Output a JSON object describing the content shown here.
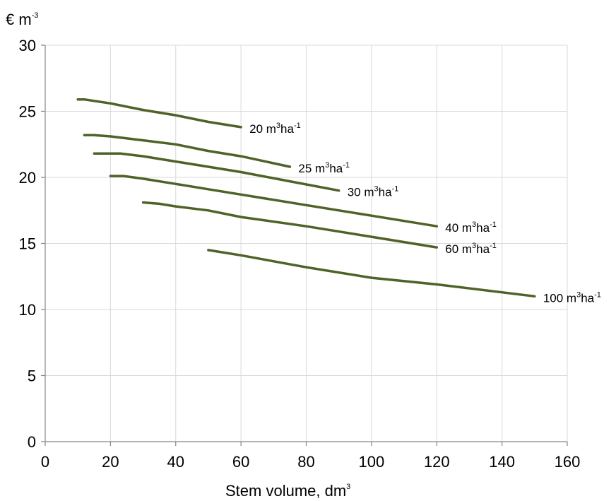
{
  "chart_data": {
    "type": "line",
    "ylabel": "€ m",
    "ylabel_sup": "-3",
    "xlabel": "Stem volume, dm",
    "xlabel_sup": "3",
    "xlim": [
      0,
      160
    ],
    "ylim": [
      0,
      30
    ],
    "xticks": [
      0,
      20,
      40,
      60,
      80,
      100,
      120,
      140,
      160
    ],
    "yticks": [
      0,
      5,
      10,
      15,
      20,
      25,
      30
    ],
    "grid": true,
    "line_color": "#4f6228",
    "series": [
      {
        "name": "20 m³ha⁻¹",
        "label_main": "20 m",
        "label_sup1": "3",
        "label_mid": "ha",
        "label_sup2": "-1",
        "x": [
          10,
          12,
          20,
          30,
          40,
          50,
          60
        ],
        "y": [
          25.9,
          25.9,
          25.6,
          25.1,
          24.7,
          24.2,
          23.8
        ]
      },
      {
        "name": "25 m³ha⁻¹",
        "label_main": "25 m",
        "label_sup1": "3",
        "label_mid": "ha",
        "label_sup2": "-1",
        "x": [
          12,
          15,
          20,
          30,
          40,
          50,
          60,
          75
        ],
        "y": [
          23.2,
          23.2,
          23.1,
          22.8,
          22.5,
          22.0,
          21.6,
          20.8
        ]
      },
      {
        "name": "30 m³ha⁻¹",
        "label_main": "30 m",
        "label_sup1": "3",
        "label_mid": "ha",
        "label_sup2": "-1",
        "x": [
          15,
          18,
          23,
          30,
          40,
          50,
          60,
          75,
          90
        ],
        "y": [
          21.8,
          21.8,
          21.8,
          21.6,
          21.2,
          20.8,
          20.4,
          19.7,
          19.0
        ]
      },
      {
        "name": "40 m³ha⁻¹",
        "label_main": "40 m",
        "label_sup1": "3",
        "label_mid": "ha",
        "label_sup2": "-1",
        "x": [
          20,
          24,
          30,
          40,
          50,
          60,
          80,
          100,
          120
        ],
        "y": [
          20.1,
          20.1,
          19.9,
          19.5,
          19.1,
          18.7,
          17.9,
          17.1,
          16.3
        ]
      },
      {
        "name": "60 m³ha⁻¹",
        "label_main": "60 m",
        "label_sup1": "3",
        "label_mid": "ha",
        "label_sup2": "-1",
        "x": [
          30,
          35,
          40,
          50,
          60,
          80,
          100,
          120
        ],
        "y": [
          18.1,
          18.0,
          17.8,
          17.5,
          17.0,
          16.3,
          15.5,
          14.7
        ]
      },
      {
        "name": "100 m³ha⁻¹",
        "label_main": "100 m",
        "label_sup1": "3",
        "label_mid": "ha",
        "label_sup2": "-1",
        "x": [
          50,
          60,
          80,
          100,
          120,
          150
        ],
        "y": [
          14.5,
          14.1,
          13.2,
          12.4,
          11.9,
          11.0
        ]
      }
    ]
  }
}
